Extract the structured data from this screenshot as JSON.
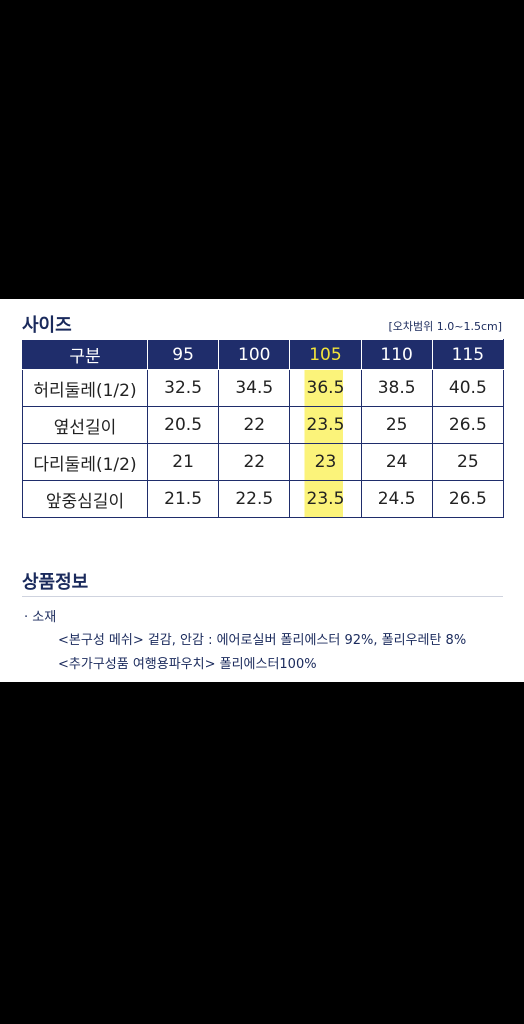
{
  "size_section": {
    "title": "사이즈",
    "tolerance_note": "[오차범위 1.0~1.5cm]"
  },
  "size_table": {
    "header_label": "구분",
    "sizes": [
      "95",
      "100",
      "105",
      "110",
      "115"
    ],
    "highlighted_size": "105",
    "rows": [
      {
        "label": "허리둘레(1/2)",
        "values": [
          "32.5",
          "34.5",
          "36.5",
          "38.5",
          "40.5"
        ]
      },
      {
        "label": "옆선길이",
        "values": [
          "20.5",
          "22",
          "23.5",
          "25",
          "26.5"
        ]
      },
      {
        "label": "다리둘레(1/2)",
        "values": [
          "21",
          "22",
          "23",
          "24",
          "25"
        ]
      },
      {
        "label": "앞중심길이",
        "values": [
          "21.5",
          "22.5",
          "23.5",
          "24.5",
          "26.5"
        ]
      }
    ]
  },
  "product_info": {
    "title": "상품정보",
    "material_label": "· 소재",
    "line1": "<본구성 메쉬> 겉감, 안감 : 에어로실버   폴리에스터 92%, 폴리우레탄 8%",
    "line2": "<추가구성품 여행용파우치> 폴리에스터100%"
  },
  "colors": {
    "header_bg": "#1f2d6b",
    "highlight": "#fbf37a",
    "header_highlight_text": "#f2e33a"
  }
}
